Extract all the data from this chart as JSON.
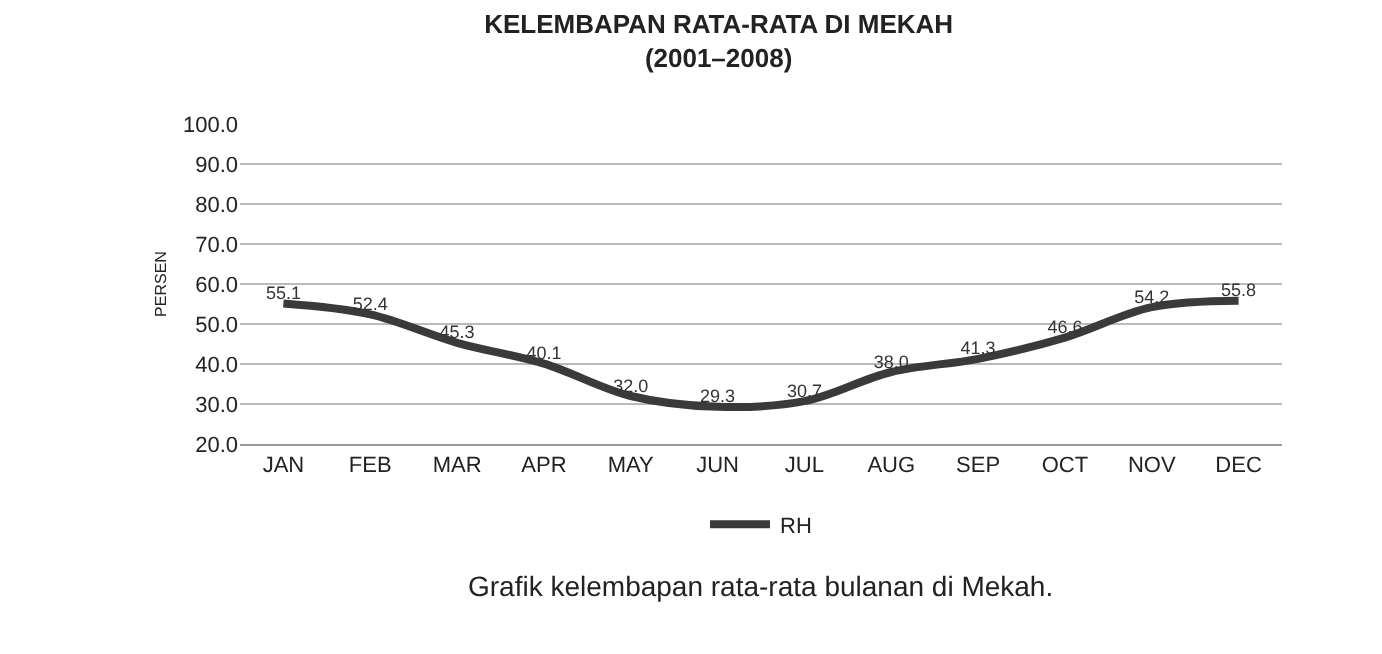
{
  "chart_data": {
    "type": "line",
    "title": "KELEMBAPAN RATA-RATA DI MEKAH",
    "subtitle": "(2001–2008)",
    "ylabel": "PERSEN",
    "categories": [
      "JAN",
      "FEB",
      "MAR",
      "APR",
      "MAY",
      "JUN",
      "JUL",
      "AUG",
      "SEP",
      "OCT",
      "NOV",
      "DEC"
    ],
    "series": [
      {
        "name": "RH",
        "color": "#3a3a3a",
        "values": [
          55.1,
          52.4,
          45.3,
          40.1,
          32.0,
          29.3,
          30.7,
          38.0,
          41.3,
          46.6,
          54.2,
          55.8
        ],
        "value_labels": [
          "55.1",
          "52.4",
          "45.3",
          "40.1",
          "32.0",
          "29.3",
          "30.7",
          "38.0",
          "41.3",
          "46.6",
          "54.2",
          "55.8"
        ]
      }
    ],
    "ylim": [
      20,
      100
    ],
    "yticks": [
      {
        "value": 20,
        "label": "20.0"
      },
      {
        "value": 30,
        "label": "30.0"
      },
      {
        "value": 40,
        "label": "40.0"
      },
      {
        "value": 50,
        "label": "50.0"
      },
      {
        "value": 60,
        "label": "60.0"
      },
      {
        "value": 70,
        "label": "70.0"
      },
      {
        "value": 80,
        "label": "80.0"
      },
      {
        "value": 90,
        "label": "90.0"
      },
      {
        "value": 100,
        "label": "100.0"
      }
    ],
    "grid": "y",
    "legend": "bottom",
    "marker": "none",
    "line_style": "solid",
    "annotations": [
      "Grafik kelembapan rata-rata bulanan di Mekah."
    ]
  }
}
